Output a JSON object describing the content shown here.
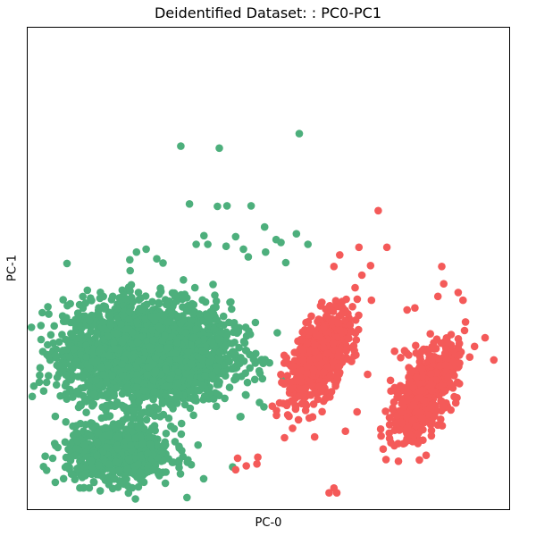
{
  "chart_data": {
    "type": "scatter",
    "title": "Deidentified Dataset: : PC0-PC1",
    "xlabel": "PC-0",
    "ylabel": "PC-1",
    "ticks": "none",
    "grid": false,
    "legend": "none",
    "xlim": [
      0,
      100
    ],
    "ylim": [
      0,
      100
    ],
    "series": [
      {
        "color": "#4daf7c",
        "clusters": [
          {
            "cx": 25,
            "cy": 32.5,
            "sx": 8.5,
            "sy": 5.2,
            "n": 2600
          },
          {
            "cx": 19,
            "cy": 11.5,
            "sx": 5.5,
            "sy": 3.0,
            "n": 700
          }
        ],
        "outliers": [
          [
            31.8,
            75.4
          ],
          [
            39.8,
            75.0
          ],
          [
            56.4,
            78.0
          ],
          [
            33.6,
            63.4
          ],
          [
            39.4,
            62.9
          ],
          [
            41.4,
            63.0
          ],
          [
            46.4,
            63.0
          ],
          [
            49.4,
            53.4
          ],
          [
            58.2,
            55.0
          ],
          [
            55.8,
            57.2
          ],
          [
            53.6,
            51.2
          ],
          [
            52.6,
            55.4
          ],
          [
            51.6,
            56.0
          ],
          [
            49.2,
            58.6
          ],
          [
            44.8,
            54.0
          ],
          [
            41.2,
            54.6
          ],
          [
            45.8,
            52.4
          ],
          [
            43.2,
            56.6
          ],
          [
            37.4,
            55.0
          ],
          [
            35.0,
            55.0
          ],
          [
            36.6,
            56.8
          ],
          [
            22.6,
            53.4
          ],
          [
            24.6,
            54.0
          ],
          [
            21.2,
            51.8
          ],
          [
            26.8,
            52.0
          ]
        ]
      },
      {
        "color": "#f45a59",
        "clusters": [
          {
            "cx": 60.5,
            "cy": 31.5,
            "sx": 3.2,
            "sy": 4.8,
            "rho": 0.55,
            "n": 650
          },
          {
            "cx": 82.5,
            "cy": 24.5,
            "sx": 3.4,
            "sy": 5.0,
            "rho": 0.6,
            "n": 560
          }
        ],
        "outliers": [
          [
            72.8,
            62.0
          ],
          [
            68.8,
            54.4
          ],
          [
            71.2,
            50.6
          ],
          [
            74.6,
            54.4
          ],
          [
            64.8,
            52.8
          ],
          [
            63.6,
            50.4
          ],
          [
            69.4,
            48.6
          ],
          [
            68.0,
            46.0
          ],
          [
            71.4,
            43.4
          ],
          [
            78.8,
            41.4
          ],
          [
            80.4,
            41.8
          ],
          [
            86.0,
            50.4
          ],
          [
            86.4,
            46.8
          ],
          [
            85.2,
            44.2
          ],
          [
            89.4,
            45.0
          ],
          [
            90.4,
            43.4
          ],
          [
            95.0,
            35.6
          ],
          [
            91.8,
            31.6
          ],
          [
            96.8,
            31.0
          ],
          [
            92.8,
            33.8
          ],
          [
            76.2,
            32.8
          ],
          [
            75.8,
            21.0
          ],
          [
            73.4,
            15.2
          ],
          [
            43.6,
            10.6
          ],
          [
            47.6,
            9.4
          ],
          [
            45.4,
            9.0
          ],
          [
            43.2,
            8.2
          ],
          [
            47.8,
            10.8
          ],
          [
            50.8,
            21.4
          ],
          [
            54.0,
            19.6
          ],
          [
            62.6,
            3.4
          ],
          [
            64.2,
            3.4
          ],
          [
            63.6,
            4.4
          ],
          [
            55.0,
            16.8
          ],
          [
            59.6,
            15.0
          ],
          [
            66.0,
            16.2
          ],
          [
            68.4,
            20.2
          ],
          [
            70.6,
            28.0
          ],
          [
            77.8,
            22.2
          ],
          [
            88.4,
            30.6
          ]
        ]
      }
    ]
  }
}
